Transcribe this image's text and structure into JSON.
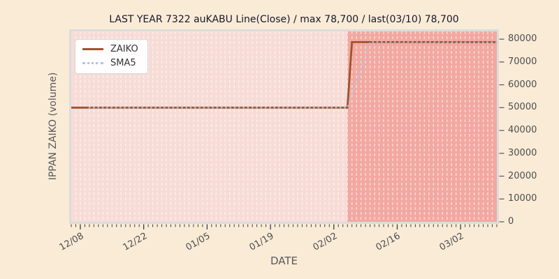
{
  "title": "LAST YEAR 7322 auKABU Line(Close) / max 78,700 / last(03/10) 78,700",
  "axes": {
    "xlabel": "DATE",
    "ylabel": "IPPAN ZAIKO (volume)"
  },
  "legend": {
    "position": "upper-left",
    "entries": [
      {
        "label": "ZAIKO",
        "color": "#a0522d",
        "style": "solid"
      },
      {
        "label": "SMA5",
        "color": "#a7c9e8",
        "style": "dotted"
      }
    ]
  },
  "colors": {
    "figure_bg": "#faebd7",
    "plot_bg": "#f7dcd6",
    "highlight_bg": "#f2a8a1",
    "grid": "rgba(255,255,255,0.55)",
    "frame": "#dcdcdc",
    "tick": "#3f3f3f",
    "tick_text": "#4d4d4d",
    "title_text": "#17172a"
  },
  "chart_data": {
    "type": "line",
    "title": "LAST YEAR 7322 auKABU Line(Close) / max 78,700 / last(03/10) 78,700",
    "xlabel": "DATE",
    "ylabel": "IPPAN ZAIKO (volume)",
    "grid": "vertical-daily-dashed-white",
    "legend_position": "upper-left",
    "x_axis": {
      "start_date": "12/06",
      "end_date": "03/10",
      "total_days": 94,
      "tick_labels": [
        "12/08",
        "12/22",
        "01/05",
        "01/19",
        "02/02",
        "02/16",
        "03/02"
      ],
      "tick_days": [
        2,
        16,
        30,
        44,
        58,
        72,
        86
      ],
      "minor_tick_every_days": 1,
      "tick_label_rotation_deg": 30
    },
    "y_axis": {
      "side": "right",
      "lim": [
        0,
        83400
      ],
      "ticks": [
        0,
        10000,
        20000,
        30000,
        40000,
        50000,
        60000,
        70000,
        80000
      ]
    },
    "series": [
      {
        "name": "ZAIKO",
        "color": "#a0522d",
        "style": "solid",
        "points": [
          [
            0,
            50000
          ],
          [
            61,
            50000
          ],
          [
            62,
            78700
          ],
          [
            94,
            78700
          ]
        ]
      },
      {
        "name": "SMA5",
        "color": "#a7c9e8",
        "style": "dotted",
        "points": [
          [
            4,
            50000
          ],
          [
            61,
            50000
          ],
          [
            62,
            55740
          ],
          [
            63,
            61480
          ],
          [
            64,
            67220
          ],
          [
            65,
            72960
          ],
          [
            66,
            78700
          ],
          [
            94,
            78700
          ]
        ]
      }
    ],
    "highlight_region": {
      "start_day": 61,
      "end_day": 94,
      "color": "#f2a8a1"
    },
    "max_value": 78700,
    "last_date": "03/10",
    "last_value": 78700
  }
}
